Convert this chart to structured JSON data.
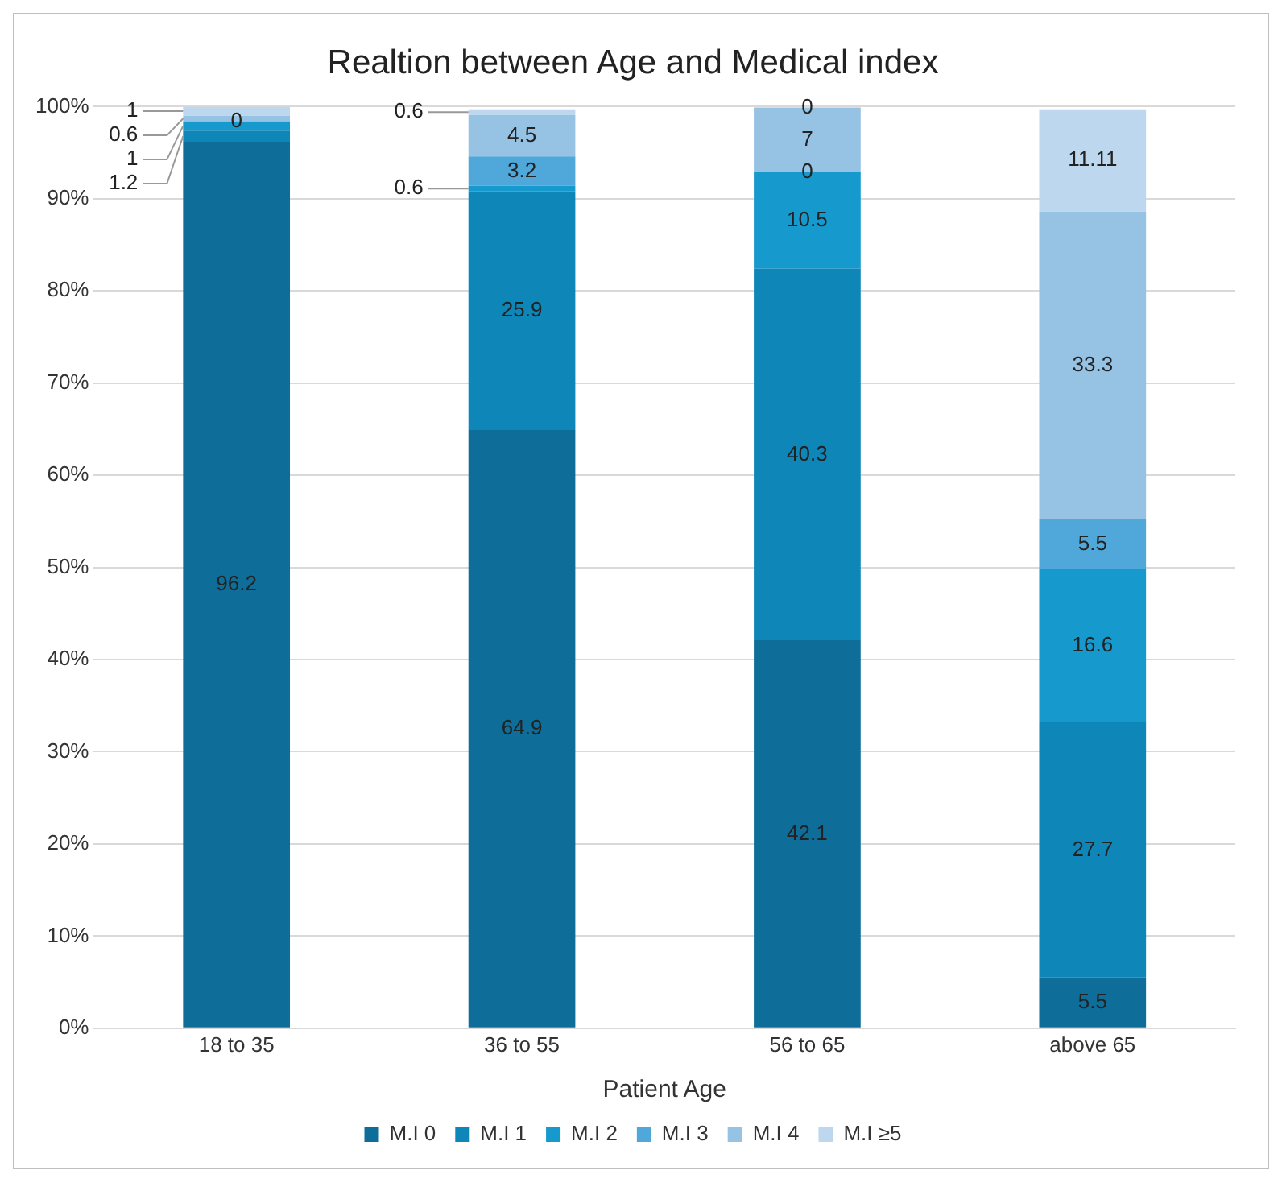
{
  "chart_data": {
    "type": "bar",
    "title": "Realtion between Age and Medical index",
    "xlabel": "Patient Age",
    "categories": [
      "18 to 35",
      "36 to 55",
      "56 to 65",
      "above 65"
    ],
    "series": [
      {
        "name": "M.I 0",
        "color": "#0e6e99",
        "values": [
          96.2,
          64.9,
          42.1,
          5.5
        ]
      },
      {
        "name": "M.I 1",
        "color": "#0f86b8",
        "values": [
          1.2,
          25.9,
          40.3,
          27.7
        ]
      },
      {
        "name": "M.I 2",
        "color": "#1699cc",
        "values": [
          1,
          0.6,
          10.5,
          16.6
        ]
      },
      {
        "name": "M.I 3",
        "color": "#4fa8d9",
        "values": [
          0,
          3.2,
          0,
          5.5
        ]
      },
      {
        "name": "M.I 4",
        "color": "#96c3e4",
        "values": [
          0.6,
          4.5,
          7,
          33.3
        ]
      },
      {
        "name": "M.I ≥5",
        "color": "#bdd8ee",
        "values": [
          1,
          0.6,
          0,
          11.11
        ]
      }
    ],
    "stacked": true,
    "ylim": [
      0,
      100
    ],
    "yticks": [
      {
        "value": 0,
        "label": "0%"
      },
      {
        "value": 10,
        "label": "10%"
      },
      {
        "value": 20,
        "label": "20%"
      },
      {
        "value": 30,
        "label": "30%"
      },
      {
        "value": 40,
        "label": "40%"
      },
      {
        "value": 50,
        "label": "50%"
      },
      {
        "value": 60,
        "label": "60%"
      },
      {
        "value": 70,
        "label": "70%"
      },
      {
        "value": 80,
        "label": "80%"
      },
      {
        "value": 90,
        "label": "90%"
      },
      {
        "value": 100,
        "label": "100%"
      }
    ],
    "grid": "y",
    "legend": "bottom",
    "data_labels": true
  }
}
